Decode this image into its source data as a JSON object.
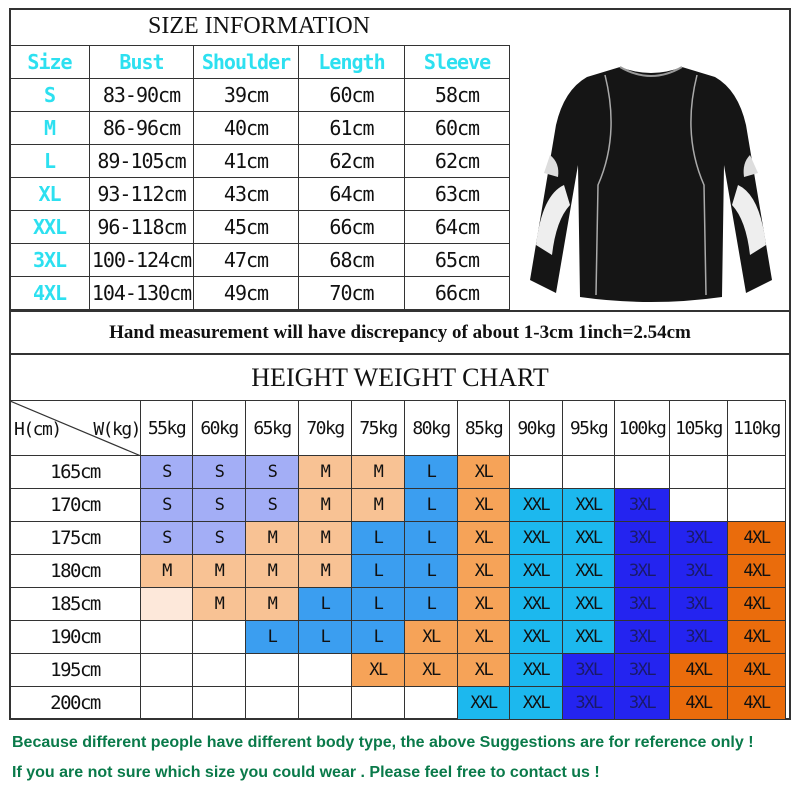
{
  "size_info": {
    "title": "SIZE  INFORMATION",
    "headers": [
      "Size",
      "Bust",
      "Shoulder",
      "Length",
      "Sleeve"
    ],
    "rows": [
      [
        "S",
        "83-90cm",
        "39cm",
        "60cm",
        "58cm"
      ],
      [
        "M",
        "86-96cm",
        "40cm",
        "61cm",
        "60cm"
      ],
      [
        "L",
        "89-105cm",
        "41cm",
        "62cm",
        "62cm"
      ],
      [
        "XL",
        "93-112cm",
        "43cm",
        "64cm",
        "63cm"
      ],
      [
        "XXL",
        "96-118cm",
        "45cm",
        "66cm",
        "64cm"
      ],
      [
        "3XL",
        "100-124cm",
        "47cm",
        "68cm",
        "65cm"
      ],
      [
        "4XL",
        "104-130cm",
        "49cm",
        "70cm",
        "66cm"
      ]
    ],
    "product_image": "black long-sleeve compression shirt with white skull print on sleeves"
  },
  "note": "Hand measurement will have discrepancy of about 1-3cm  1inch=2.54cm",
  "height_weight": {
    "title": "HEIGHT WEIGHT CHART",
    "corner_h": "H(cm)",
    "corner_w": "W(kg)",
    "weights": [
      "55kg",
      "60kg",
      "65kg",
      "70kg",
      "75kg",
      "80kg",
      "85kg",
      "90kg",
      "95kg",
      "100kg",
      "105kg",
      "110kg"
    ],
    "heights": [
      "165cm",
      "170cm",
      "175cm",
      "180cm",
      "185cm",
      "190cm",
      "195cm",
      "200cm"
    ],
    "grid": [
      [
        "S",
        "S",
        "S",
        "M",
        "M",
        "L",
        "XL",
        "",
        "",
        "",
        "",
        ""
      ],
      [
        "S",
        "S",
        "S",
        "M",
        "M",
        "L",
        "XL",
        "XXL",
        "XXL",
        "3XL",
        "",
        ""
      ],
      [
        "S",
        "S",
        "M",
        "M",
        "L",
        "L",
        "XL",
        "XXL",
        "XXL",
        "3XL",
        "3XL",
        "4XL"
      ],
      [
        "M",
        "M",
        "M",
        "M",
        "L",
        "L",
        "XL",
        "XXL",
        "XXL",
        "3XL",
        "3XL",
        "4XL"
      ],
      [
        "~",
        "M",
        "M",
        "L",
        "L",
        "L",
        "XL",
        "XXL",
        "XXL",
        "3XL",
        "3XL",
        "4XL"
      ],
      [
        "",
        "",
        "L",
        "L",
        "L",
        "XL",
        "XL",
        "XXL",
        "XXL",
        "3XL",
        "3XL",
        "4XL"
      ],
      [
        "",
        "",
        "",
        "",
        "XL",
        "XL",
        "XL",
        "XXL",
        "3XL",
        "3XL",
        "4XL",
        "4XL"
      ],
      [
        "",
        "",
        "",
        "",
        "",
        "",
        "XXL",
        "XXL",
        "3XL",
        "3XL",
        "4XL",
        "4XL"
      ]
    ],
    "colors": {
      "S": "#a3aef6",
      "M": "#f8c294",
      "L": "#3b9ef0",
      "XL": "#f6a358",
      "XXL": "#1cb8ee",
      "3XL": "#2424f0",
      "4XL": "#ea6c0c",
      "~": "#fde8da"
    }
  },
  "footer": [
    "Because different people have different body type, the above Suggestions are for reference only !",
    "If you are not sure which size you could wear . Please feel free to contact us !"
  ],
  "colors": {
    "header_text": "#2de0f0",
    "footer_text": "#0a7a4a"
  }
}
